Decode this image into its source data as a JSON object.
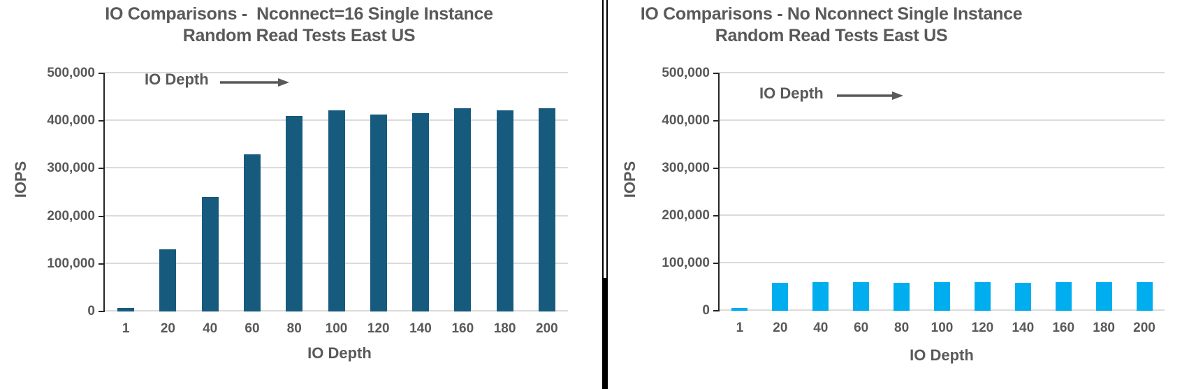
{
  "page": {
    "background_color": "#ffffff",
    "text_color": "#595959",
    "gridline_color": "#DBDBDB",
    "axis_color": "#262626",
    "divider_color": "#000000"
  },
  "divider": {
    "style": "thin double line above, thick solid line below",
    "color": "#000000"
  },
  "chart_data": [
    {
      "type": "bar",
      "title_lines": [
        "IO Comparisons -  Nconnect=16 Single Instance",
        "Random Read Tests East US"
      ],
      "title": "IO Comparisons -  Nconnect=16 Single Instance Random Read Tests East US",
      "xlabel": "IO Depth",
      "ylabel": "IOPS",
      "categories": [
        "1",
        "20",
        "40",
        "60",
        "80",
        "100",
        "120",
        "140",
        "160",
        "180",
        "200"
      ],
      "values": [
        7000,
        130000,
        241000,
        330000,
        410000,
        422000,
        414000,
        417000,
        426000,
        423000,
        426000
      ],
      "ylim": [
        0,
        500000
      ],
      "ytick_step": 100000,
      "ytick_labels": [
        "0",
        "100,000",
        "200,000",
        "300,000",
        "400,000",
        "500,000"
      ],
      "bar_color": "#165B7D",
      "grid": true,
      "legend": false,
      "annotation": {
        "label": "IO Depth",
        "icon": "right-arrow-icon",
        "arrow_color": "#595959"
      }
    },
    {
      "type": "bar",
      "title_lines": [
        "IO Comparisons - No Nconnect Single Instance",
        "Random Read Tests East US"
      ],
      "title": "IO Comparisons - No Nconnect Single Instance Random Read Tests East US",
      "xlabel": "IO Depth",
      "ylabel": "IOPS",
      "categories": [
        "1",
        "20",
        "40",
        "60",
        "80",
        "100",
        "120",
        "140",
        "160",
        "180",
        "200"
      ],
      "values": [
        6000,
        59000,
        60000,
        61000,
        59000,
        61000,
        60000,
        59000,
        61000,
        60000,
        60000
      ],
      "ylim": [
        0,
        500000
      ],
      "ytick_step": 100000,
      "ytick_labels": [
        "0",
        "100,000",
        "200,000",
        "300,000",
        "400,000",
        "500,000"
      ],
      "bar_color": "#00AEEF",
      "grid": true,
      "legend": false,
      "annotation": {
        "label": "IO Depth",
        "icon": "right-arrow-icon",
        "arrow_color": "#595959"
      }
    }
  ]
}
